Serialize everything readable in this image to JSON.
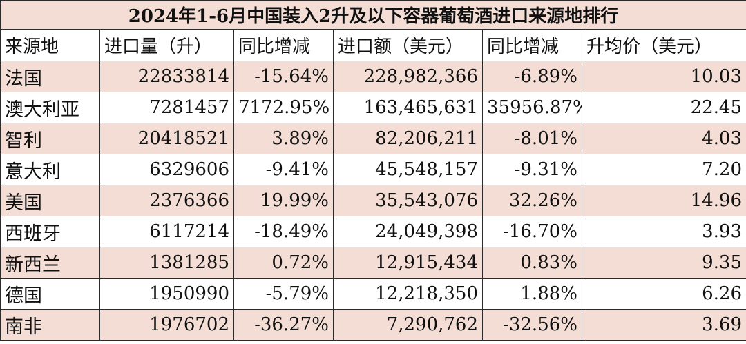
{
  "title": "2024年1-6月中国装入2升及以下容器葡萄酒进口来源地排行",
  "headers": [
    "来源地",
    "进口量（升）",
    "同比增减",
    "进口额（美元）",
    "同比增减",
    "升均价（美元）"
  ],
  "rows": [
    {
      "country": "法国",
      "volume": "22833814",
      "volume_yoy": "-15.64%",
      "value": "228,982,366",
      "value_yoy": "-6.89%",
      "avg_price": "10.03"
    },
    {
      "country": "澳大利亚",
      "volume": "7281457",
      "volume_yoy": "7172.95%",
      "value": "163,465,631",
      "value_yoy": "35956.87%",
      "avg_price": "22.45"
    },
    {
      "country": "智利",
      "volume": "20418521",
      "volume_yoy": "3.89%",
      "value": "82,206,211",
      "value_yoy": "-8.01%",
      "avg_price": "4.03"
    },
    {
      "country": "意大利",
      "volume": "6329606",
      "volume_yoy": "-9.41%",
      "value": "45,548,157",
      "value_yoy": "-9.31%",
      "avg_price": "7.20"
    },
    {
      "country": "美国",
      "volume": "2376366",
      "volume_yoy": "19.99%",
      "value": "35,543,076",
      "value_yoy": "32.26%",
      "avg_price": "14.96"
    },
    {
      "country": "西班牙",
      "volume": "6117214",
      "volume_yoy": "-18.49%",
      "value": "24,049,398",
      "value_yoy": "-16.70%",
      "avg_price": "3.93"
    },
    {
      "country": "新西兰",
      "volume": "1381285",
      "volume_yoy": "0.72%",
      "value": "12,915,434",
      "value_yoy": "0.83%",
      "avg_price": "9.35"
    },
    {
      "country": "德国",
      "volume": "1950990",
      "volume_yoy": "-5.79%",
      "value": "12,218,350",
      "value_yoy": "1.88%",
      "avg_price": "6.26"
    },
    {
      "country": "南非",
      "volume": "1976702",
      "volume_yoy": "-36.27%",
      "value": "7,290,762",
      "value_yoy": "-32.56%",
      "avg_price": "3.69"
    }
  ],
  "colors": {
    "shaded_row": "#f3ddd4",
    "plain_row": "#ffffff",
    "border": "#2b2b2b"
  }
}
